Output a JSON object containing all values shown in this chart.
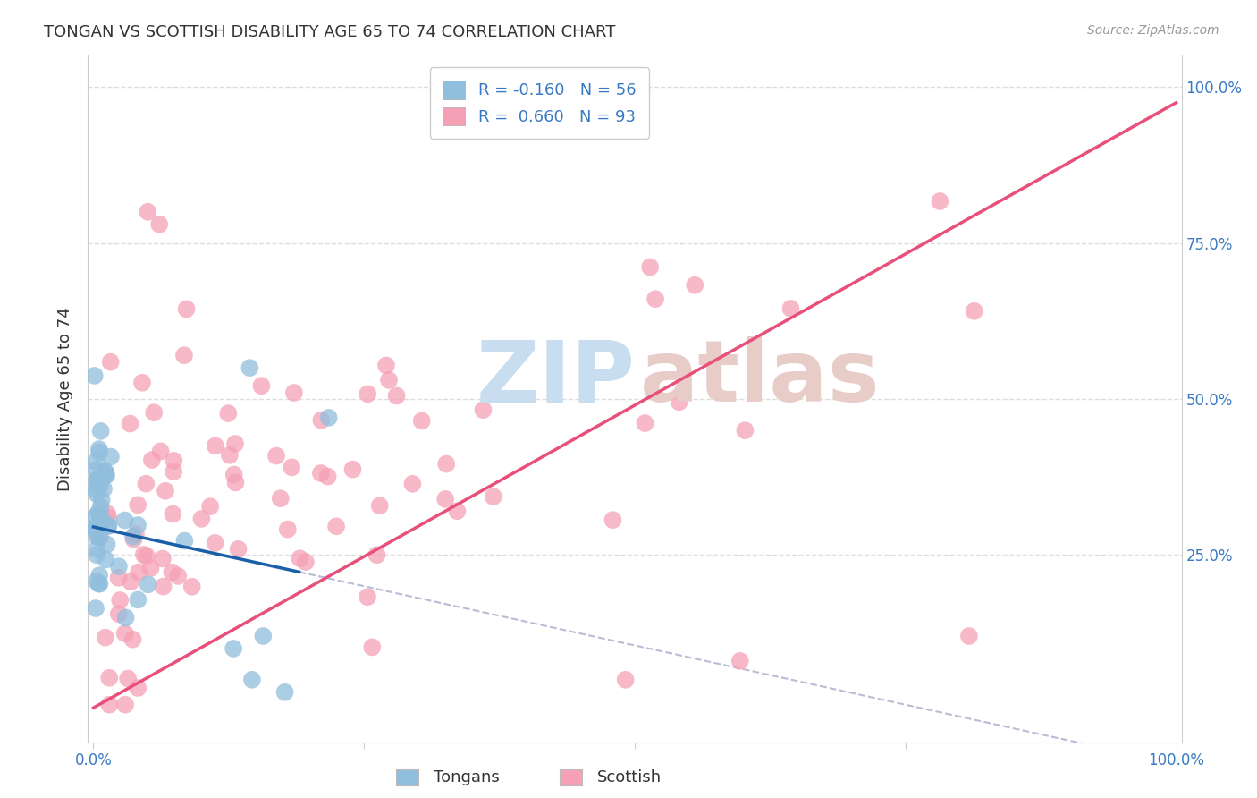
{
  "title": "TONGAN VS SCOTTISH DISABILITY AGE 65 TO 74 CORRELATION CHART",
  "source": "Source: ZipAtlas.com",
  "ylabel": "Disability Age 65 to 74",
  "tongan_R": -0.16,
  "tongan_N": 56,
  "scottish_R": 0.66,
  "scottish_N": 93,
  "tongan_color": "#90bedd",
  "scottish_color": "#f5a0b5",
  "tongan_line_color": "#1a5fa8",
  "scottish_line_color": "#e8507a",
  "legend_label_tongan": "Tongans",
  "legend_label_scottish": "Scottish",
  "watermark_zip_color": "#c8ddf0",
  "watermark_atlas_color": "#e8ccc8",
  "background_color": "#ffffff",
  "right_ytick_labels": [
    "25.0%",
    "50.0%",
    "75.0%",
    "100.0%"
  ],
  "right_ytick_values": [
    0.25,
    0.5,
    0.75,
    1.0
  ],
  "grid_color": "#dddddd",
  "title_fontsize": 13,
  "seed": 42,
  "xlim": [
    0.0,
    1.0
  ],
  "ylim": [
    0.0,
    1.0
  ]
}
